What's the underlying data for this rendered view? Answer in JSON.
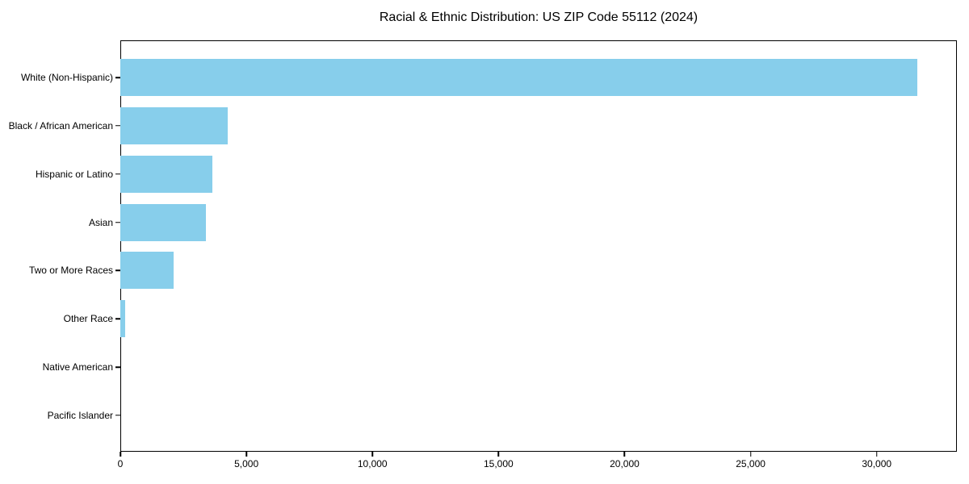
{
  "chart_data": {
    "type": "bar",
    "orientation": "horizontal",
    "title": "Racial & Ethnic Distribution: US ZIP Code 55112 (2024)",
    "xlabel": "",
    "ylabel": "",
    "categories": [
      "White (Non-Hispanic)",
      "Black / African American",
      "Hispanic or Latino",
      "Asian",
      "Two or More Races",
      "Other Race",
      "Native American",
      "Pacific Islander"
    ],
    "values": [
      31600,
      4250,
      3650,
      3400,
      2100,
      200,
      0,
      0
    ],
    "xlim": [
      0,
      33180
    ],
    "x_ticks": [
      {
        "value": 0,
        "label": "0"
      },
      {
        "value": 5000,
        "label": "5,000"
      },
      {
        "value": 10000,
        "label": "10,000"
      },
      {
        "value": 15000,
        "label": "15,000"
      },
      {
        "value": 20000,
        "label": "20,000"
      },
      {
        "value": 25000,
        "label": "25,000"
      },
      {
        "value": 30000,
        "label": "30,000"
      }
    ],
    "bar_color": "#87CEEB",
    "spine_color": "#000000",
    "background_color": "#ffffff",
    "grid": false,
    "legend": "none"
  }
}
